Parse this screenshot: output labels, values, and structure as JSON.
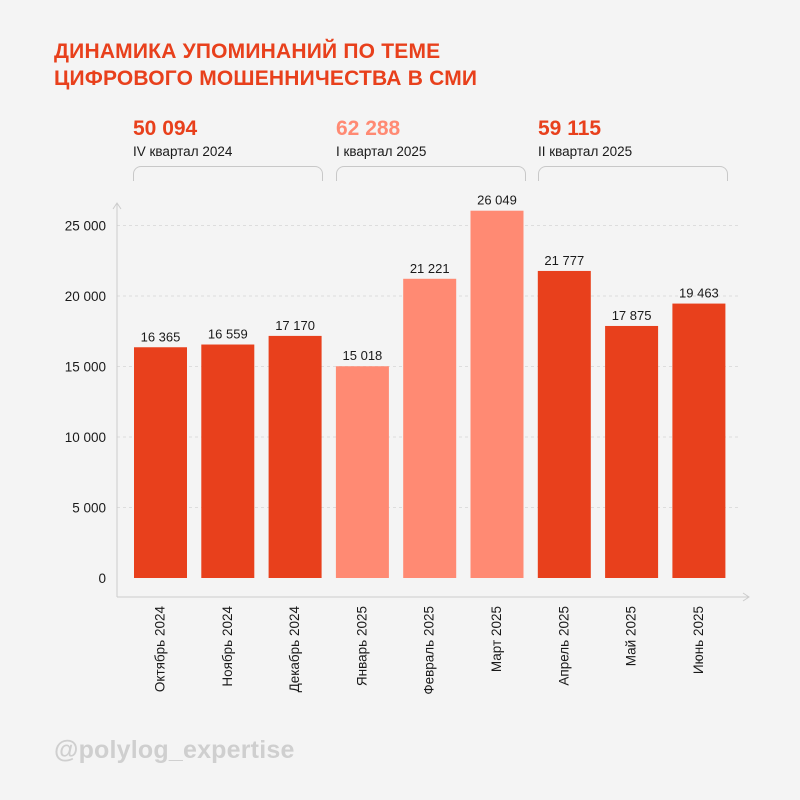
{
  "title_lines": [
    "ДИНАМИКА УПОМИНАНИЙ ПО ТЕМЕ",
    "ЦИФРОВОГО МОШЕННИЧЕСТВА В СМИ"
  ],
  "quarters": [
    {
      "total": "50 094",
      "label": "IV квартал 2024",
      "color": "#e8401c"
    },
    {
      "total": "62 288",
      "label": "I квартал 2025",
      "color": "#ff8a73"
    },
    {
      "total": "59 115",
      "label": "II квартал 2025",
      "color": "#e8401c"
    }
  ],
  "colors": {
    "dark": "#e8401c",
    "light": "#ff8a73",
    "axis": "#cccccc",
    "grid": "#dddddd"
  },
  "watermark": "@polylog_expertise",
  "chart_data": {
    "type": "bar",
    "categories": [
      "Октябрь 2024",
      "Ноябрь 2024",
      "Декабрь 2024",
      "Январь 2025",
      "Февраль 2025",
      "Март 2025",
      "Апрель 2025",
      "Май 2025",
      "Июнь 2025"
    ],
    "values": [
      16365,
      16559,
      17170,
      15018,
      21221,
      26049,
      21777,
      17875,
      19463
    ],
    "value_labels": [
      "16 365",
      "16 559",
      "17 170",
      "15 018",
      "21 221",
      "26 049",
      "21 777",
      "17 875",
      "19 463"
    ],
    "bar_colors": [
      "#e8401c",
      "#e8401c",
      "#e8401c",
      "#ff8a73",
      "#ff8a73",
      "#ff8a73",
      "#e8401c",
      "#e8401c",
      "#e8401c"
    ],
    "yticks": [
      0,
      5000,
      10000,
      15000,
      20000,
      25000
    ],
    "ytick_labels": [
      "0",
      "5 000",
      "10 000",
      "15 000",
      "20 000",
      "25 000"
    ],
    "ylim": [
      0,
      27000
    ],
    "grid": true,
    "xlabel": "",
    "ylabel": ""
  }
}
